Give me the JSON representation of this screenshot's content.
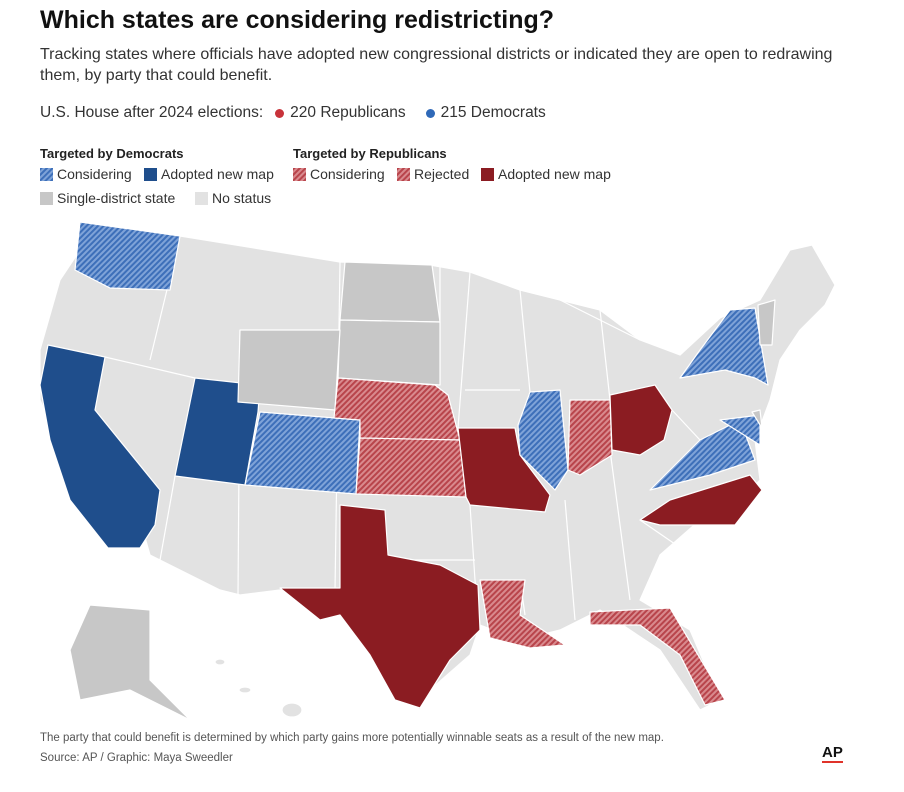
{
  "header": {
    "title": "Which states are considering redistricting?",
    "subtitle": "Tracking states where officials have adopted new congressional districts or indicated they are open to redrawing them, by party that could benefit."
  },
  "house": {
    "label": "U.S. House after 2024 elections:",
    "republicans": "220 Republicans",
    "democrats": "215 Democrats"
  },
  "legend": {
    "democrats": {
      "heading": "Targeted by Democrats",
      "considering": "Considering",
      "adopted": "Adopted new map"
    },
    "republicans": {
      "heading": "Targeted by Republicans",
      "considering": "Considering",
      "rejected": "Rejected",
      "adopted": "Adopted new map"
    },
    "single": "Single-district state",
    "none": "No status"
  },
  "footer": {
    "note": "The party that could benefit is determined by which party gains more potentially winnable seats as a result of the new map.",
    "source": "Source: AP / Graphic: Maya Sweedler",
    "logo": "AP"
  }
}
